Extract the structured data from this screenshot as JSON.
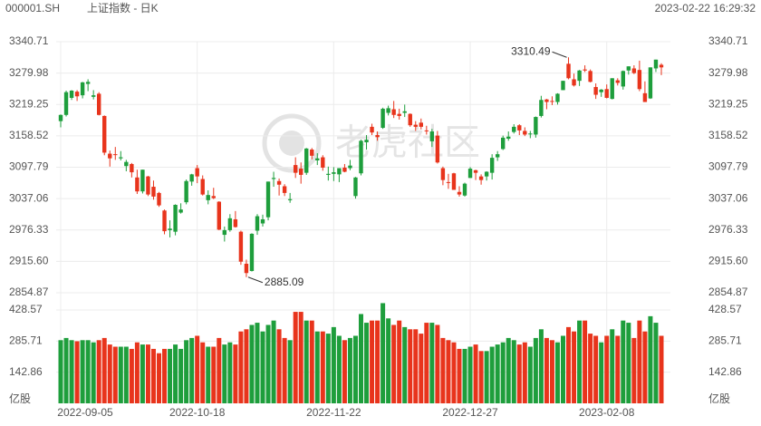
{
  "chart_data": {
    "type": "candlestick",
    "symbol": "000001.SH",
    "name": "上证指数 - 日K",
    "timestamp": "2023-02-22 16:29:32",
    "watermark": "老虎社区",
    "up_color": "#1e9e3c",
    "down_color": "#e8341c",
    "grid": true,
    "categories": [
      "2022-09-05",
      null,
      null,
      null,
      null,
      null,
      null,
      null,
      null,
      null,
      null,
      null,
      null,
      null,
      null,
      null,
      null,
      null,
      null,
      null,
      null,
      null,
      null,
      null,
      null,
      "2022-10-18",
      null,
      null,
      null,
      null,
      null,
      null,
      null,
      null,
      null,
      null,
      null,
      null,
      null,
      null,
      null,
      null,
      null,
      null,
      null,
      null,
      null,
      null,
      null,
      null,
      "2022-11-22",
      null,
      null,
      null,
      null,
      null,
      null,
      null,
      null,
      null,
      null,
      null,
      null,
      null,
      null,
      null,
      null,
      null,
      null,
      null,
      null,
      null,
      null,
      null,
      null,
      "2022-12-27",
      null,
      null,
      null,
      null,
      null,
      null,
      null,
      null,
      null,
      null,
      null,
      null,
      null,
      null,
      null,
      null,
      null,
      null,
      null,
      null,
      null,
      null,
      null,
      null,
      "2023-02-08",
      null,
      null,
      null,
      null,
      null,
      null,
      null,
      null,
      null,
      null
    ],
    "open": [
      3187,
      3199,
      3232,
      3244,
      3237,
      3259,
      3234,
      3240,
      3197,
      3124,
      3123,
      3115,
      3100,
      3104,
      3078,
      3051,
      3080,
      3060,
      3048,
      3014,
      2976,
      2973,
      3010,
      3030,
      3070,
      3096,
      3075,
      3034,
      3042,
      3031,
      2967,
      2976,
      2997,
      2973,
      2911,
      2897,
      2975,
      2989,
      3001,
      3075,
      3071,
      3061,
      3034,
      3102,
      3095,
      3087,
      3132,
      3111,
      3117,
      3083,
      3085,
      3084,
      3097,
      3096,
      3042,
      3086,
      3146,
      3176,
      3160,
      3174,
      3203,
      3210,
      3201,
      3203,
      3201,
      3180,
      3184,
      3169,
      3148,
      3159,
      3096,
      3069,
      3086,
      3050,
      3043,
      3077,
      3092,
      3080,
      3080,
      3087,
      3117,
      3133,
      3153,
      3166,
      3179,
      3168,
      3162,
      3161,
      3197,
      3229,
      3226,
      3224,
      3247,
      3298,
      3268,
      3265,
      3287,
      3284,
      3253,
      3243,
      3249,
      3230,
      3266,
      3254,
      3285,
      3289,
      3286,
      3241,
      3231,
      3289,
      3296
    ],
    "high": [
      3200,
      3246,
      3247,
      3247,
      3263,
      3268,
      3247,
      3243,
      3198,
      3130,
      3137,
      3129,
      3112,
      3106,
      3093,
      3093,
      3081,
      3072,
      3050,
      3016,
      2995,
      3026,
      3028,
      3074,
      3085,
      3102,
      3082,
      3053,
      3058,
      3032,
      2983,
      3007,
      3013,
      2975,
      2919,
      2970,
      3007,
      3006,
      3070,
      3089,
      3076,
      3065,
      3048,
      3117,
      3107,
      3135,
      3135,
      3125,
      3121,
      3099,
      3098,
      3096,
      3104,
      3112,
      3079,
      3151,
      3160,
      3182,
      3167,
      3213,
      3217,
      3226,
      3211,
      3219,
      3202,
      3187,
      3192,
      3178,
      3172,
      3168,
      3099,
      3085,
      3087,
      3061,
      3068,
      3098,
      3093,
      3084,
      3090,
      3123,
      3129,
      3159,
      3167,
      3181,
      3181,
      3175,
      3168,
      3196,
      3236,
      3230,
      3235,
      3241,
      3265,
      3310.49,
      3279,
      3286,
      3295,
      3287,
      3260,
      3249,
      3258,
      3270,
      3270,
      3285,
      3293,
      3295,
      3304,
      3264,
      3291,
      3306,
      3299
    ],
    "low": [
      3175,
      3196,
      3228,
      3226,
      3231,
      3245,
      3229,
      3198,
      3121,
      3099,
      3112,
      3111,
      3090,
      3078,
      3046,
      3047,
      3042,
      3035,
      3021,
      2968,
      2962,
      2966,
      3008,
      3026,
      3062,
      3067,
      3043,
      3026,
      3036,
      2976,
      2954,
      2973,
      2981,
      2909,
      2885.09,
      2896,
      2967,
      2983,
      2995,
      3060,
      3043,
      3042,
      3029,
      3077,
      3066,
      3083,
      3113,
      3102,
      3091,
      3072,
      3071,
      3069,
      3088,
      3092,
      3037,
      3082,
      3132,
      3160,
      3149,
      3172,
      3198,
      3193,
      3190,
      3195,
      3176,
      3168,
      3171,
      3161,
      3137,
      3105,
      3063,
      3056,
      3054,
      3041,
      3041,
      3077,
      3073,
      3064,
      3072,
      3074,
      3110,
      3131,
      3149,
      3163,
      3160,
      3158,
      3154,
      3155,
      3194,
      3210,
      3218,
      3219,
      3247,
      3268,
      3254,
      3255,
      3282,
      3262,
      3230,
      3234,
      3231,
      3229,
      3256,
      3248,
      3277,
      3278,
      3245,
      3224,
      3230,
      3282,
      3276
    ],
    "close": [
      3199,
      3243,
      3246,
      3235,
      3262,
      3263,
      3237,
      3199,
      3126,
      3115,
      3122,
      3117,
      3108,
      3088,
      3051,
      3093,
      3045,
      3041,
      3024,
      2974,
      2979,
      3025,
      3016,
      3071,
      3084,
      3080,
      3045,
      3044,
      3038,
      2977,
      2976,
      2999,
      2982,
      2915,
      2893,
      2969,
      3003,
      2997,
      3070,
      3077,
      3064,
      3048,
      3036,
      3087,
      3083,
      3134,
      3120,
      3115,
      3097,
      3085,
      3088,
      3096,
      3089,
      3101,
      3078,
      3149,
      3151,
      3165,
      3156,
      3211,
      3212,
      3199,
      3197,
      3206,
      3179,
      3176,
      3176,
      3168,
      3167,
      3107,
      3073,
      3068,
      3054,
      3045,
      3066,
      3095,
      3087,
      3073,
      3089,
      3116,
      3123,
      3155,
      3157,
      3176,
      3169,
      3161,
      3163,
      3195,
      3228,
      3224,
      3225,
      3240,
      3265,
      3270,
      3256,
      3285,
      3285,
      3263,
      3238,
      3248,
      3232,
      3270,
      3261,
      3284,
      3293,
      3280,
      3249,
      3224,
      3291,
      3306,
      3291
    ],
    "ylim": [
      2854.87,
      3340.71
    ],
    "yticks": [
      3340.71,
      3279.98,
      3219.25,
      3158.52,
      3097.79,
      3037.06,
      2976.33,
      {
        "value": 2915.6,
        "label": "2915.60"
      },
      2854.87
    ],
    "annotations": [
      3310.49,
      2885.09
    ],
    "volume": {
      "unit": "亿股",
      "values": [
        290,
        300,
        290,
        285,
        290,
        290,
        280,
        290,
        300,
        270,
        260,
        260,
        260,
        250,
        280,
        270,
        270,
        250,
        230,
        250,
        250,
        270,
        250,
        290,
        300,
        310,
        280,
        260,
        260,
        300,
        270,
        280,
        270,
        330,
        340,
        360,
        370,
        330,
        360,
        380,
        340,
        300,
        290,
        420,
        420,
        380,
        380,
        330,
        330,
        320,
        350,
        310,
        290,
        300,
        310,
        410,
        370,
        380,
        380,
        460,
        390,
        360,
        380,
        350,
        340,
        340,
        320,
        370,
        370,
        360,
        300,
        290,
        280,
        250,
        250,
        260,
        270,
        240,
        240,
        260,
        270,
        280,
        300,
        290,
        270,
        280,
        260,
        300,
        340,
        300,
        290,
        280,
        310,
        350,
        330,
        380,
        380,
        320,
        310,
        280,
        310,
        340,
        310,
        380,
        370,
        300,
        380,
        330,
        400,
        370,
        310
      ],
      "ylim": [
        0,
        428.57
      ],
      "yticks": [
        428.57,
        285.71,
        142.86
      ]
    }
  }
}
